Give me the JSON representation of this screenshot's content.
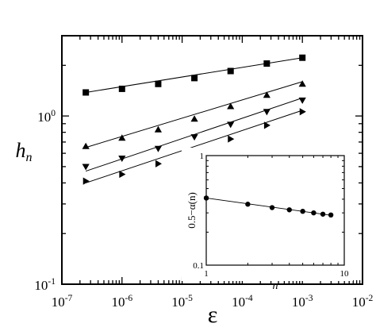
{
  "chart_data": [
    {
      "type": "scatter",
      "scale": "log-log",
      "title": "",
      "xlabel": "ε",
      "ylabel": "h",
      "ylabel_subscript": "n",
      "xlim": [
        1e-07,
        0.01
      ],
      "ylim": [
        0.1,
        3
      ],
      "x_ticks": [
        {
          "value": 1e-07,
          "base": "10",
          "exp": "-7"
        },
        {
          "value": 1e-06,
          "base": "10",
          "exp": "-6"
        },
        {
          "value": 1e-05,
          "base": "10",
          "exp": "-5"
        },
        {
          "value": 0.0001,
          "base": "10",
          "exp": "-4"
        },
        {
          "value": 0.001,
          "base": "10",
          "exp": "-3"
        },
        {
          "value": 0.01,
          "base": "10",
          "exp": "-2"
        }
      ],
      "y_ticks": [
        {
          "value": 0.1,
          "base": "10",
          "exp": "-1"
        },
        {
          "value": 1,
          "base": "10",
          "exp": "0"
        }
      ],
      "y_minor_ticks": [
        0.5
      ],
      "grid": false,
      "series": [
        {
          "marker": "square",
          "x": [
            2.5e-07,
            1e-06,
            4e-06,
            1.6e-05,
            6.4e-05,
            0.000256,
            0.001
          ],
          "y": [
            1.38,
            1.45,
            1.55,
            1.68,
            1.85,
            2.05,
            2.22
          ],
          "fit": {
            "x": [
              2.5e-07,
              0.001
            ],
            "y": [
              1.38,
              2.22
            ]
          }
        },
        {
          "marker": "triangle-up",
          "x": [
            2.5e-07,
            1e-06,
            4e-06,
            1.6e-05,
            6.4e-05,
            0.000256,
            0.001
          ],
          "y": [
            0.66,
            0.74,
            0.83,
            0.96,
            1.14,
            1.33,
            1.55
          ],
          "fit": {
            "x": [
              2.5e-07,
              0.001
            ],
            "y": [
              0.65,
              1.6
            ]
          }
        },
        {
          "marker": "triangle-down",
          "x": [
            2.5e-07,
            1e-06,
            4e-06,
            1.6e-05,
            6.4e-05,
            0.000256,
            0.001
          ],
          "y": [
            0.5,
            0.56,
            0.64,
            0.75,
            0.89,
            1.06,
            1.24
          ],
          "fit": {
            "x": [
              2.5e-07,
              0.001
            ],
            "y": [
              0.47,
              1.28
            ]
          }
        },
        {
          "marker": "triangle-right",
          "x": [
            2.5e-07,
            1e-06,
            4e-06,
            1.6e-05,
            6.4e-05,
            0.000256,
            0.001
          ],
          "y": [
            0.41,
            0.45,
            0.52,
            0.61,
            0.73,
            0.88,
            1.06
          ],
          "fit": {
            "x": [
              2.5e-07,
              0.001
            ],
            "y": [
              0.4,
              1.08
            ]
          }
        }
      ]
    },
    {
      "type": "scatter",
      "scale": "log-log",
      "role": "inset",
      "xlabel": "n",
      "ylabel": "0.5−α(n)",
      "xlim": [
        1,
        10
      ],
      "ylim": [
        0.1,
        1
      ],
      "x_ticks": [
        {
          "value": 1,
          "label": "1"
        },
        {
          "value": 10,
          "label": "10"
        }
      ],
      "y_ticks": [
        {
          "value": 0.1,
          "label": "0.1"
        },
        {
          "value": 1,
          "label": "1"
        }
      ],
      "series": [
        {
          "marker": "circle",
          "x": [
            1,
            2,
            3,
            4,
            5,
            6,
            7,
            8
          ],
          "y": [
            0.41,
            0.36,
            0.335,
            0.32,
            0.31,
            0.3,
            0.292,
            0.287
          ],
          "fit": {
            "x": [
              1,
              8
            ],
            "y": [
              0.41,
              0.285
            ]
          }
        }
      ]
    }
  ]
}
